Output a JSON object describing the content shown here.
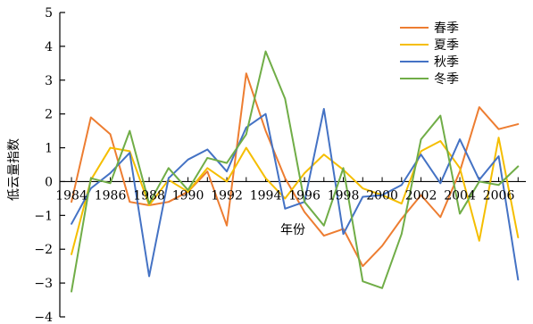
{
  "chart_data": {
    "type": "line",
    "title": "",
    "xlabel": "年份",
    "ylabel": "低云量指数",
    "ylim": [
      -4,
      5
    ],
    "yticks": [
      5,
      4,
      3,
      2,
      1,
      0,
      -1,
      -2,
      -3,
      -4
    ],
    "ytick_labels": [
      "5",
      "4",
      "3",
      "2",
      "1",
      "0",
      "−1",
      "−2",
      "−3",
      "−4"
    ],
    "xlim": [
      1983.4,
      2007.4
    ],
    "xticks": [
      1984,
      1986,
      1988,
      1990,
      1992,
      1994,
      1996,
      1998,
      2000,
      2002,
      2004,
      2006
    ],
    "xtick_labels": [
      "1984",
      "1986",
      "1988",
      "1990",
      "1992",
      "1994",
      "1996",
      "1998",
      "2000",
      "2002",
      "2004",
      "2006"
    ],
    "x": [
      1984,
      1985,
      1986,
      1987,
      1988,
      1989,
      1990,
      1991,
      1992,
      1993,
      1994,
      1995,
      1996,
      1997,
      1998,
      1999,
      2000,
      2001,
      2002,
      2003,
      2004,
      2005,
      2006,
      2007
    ],
    "legend_position": "top-right",
    "grid": false,
    "series": [
      {
        "name": "春季",
        "color": "#ED7D31",
        "values": [
          -0.6,
          1.9,
          1.4,
          -0.6,
          -0.7,
          -0.6,
          -0.3,
          0.3,
          -1.3,
          3.2,
          1.5,
          0.1,
          -0.9,
          -1.6,
          -1.4,
          -2.5,
          -1.9,
          -1.1,
          -0.4,
          -1.05,
          0.3,
          2.2,
          1.55,
          1.7
        ]
      },
      {
        "name": "夏季",
        "color": "#F5BE00",
        "values": [
          -2.15,
          0.05,
          1.0,
          0.9,
          -0.7,
          0.05,
          -0.3,
          0.4,
          0.0,
          1.0,
          0.1,
          -0.5,
          0.25,
          0.8,
          0.35,
          -0.2,
          -0.4,
          -0.65,
          0.9,
          1.2,
          0.4,
          -1.75,
          1.3,
          -1.65
        ]
      },
      {
        "name": "秋季",
        "color": "#4472C4",
        "values": [
          -1.25,
          -0.2,
          0.25,
          0.85,
          -2.8,
          0.1,
          0.65,
          0.95,
          0.3,
          1.6,
          2.0,
          -0.8,
          -0.6,
          2.15,
          -1.55,
          -0.45,
          -0.4,
          -0.1,
          0.8,
          -0.05,
          1.25,
          0.05,
          0.75,
          -2.9
        ]
      },
      {
        "name": "冬季",
        "color": "#70AD47",
        "values": [
          -3.25,
          0.1,
          -0.05,
          1.5,
          -0.65,
          0.4,
          -0.25,
          0.7,
          0.55,
          1.4,
          3.85,
          2.45,
          -0.6,
          -1.3,
          0.4,
          -2.95,
          -3.15,
          -1.55,
          1.25,
          1.95,
          -0.95,
          0.0,
          -0.1,
          0.45
        ]
      }
    ]
  }
}
